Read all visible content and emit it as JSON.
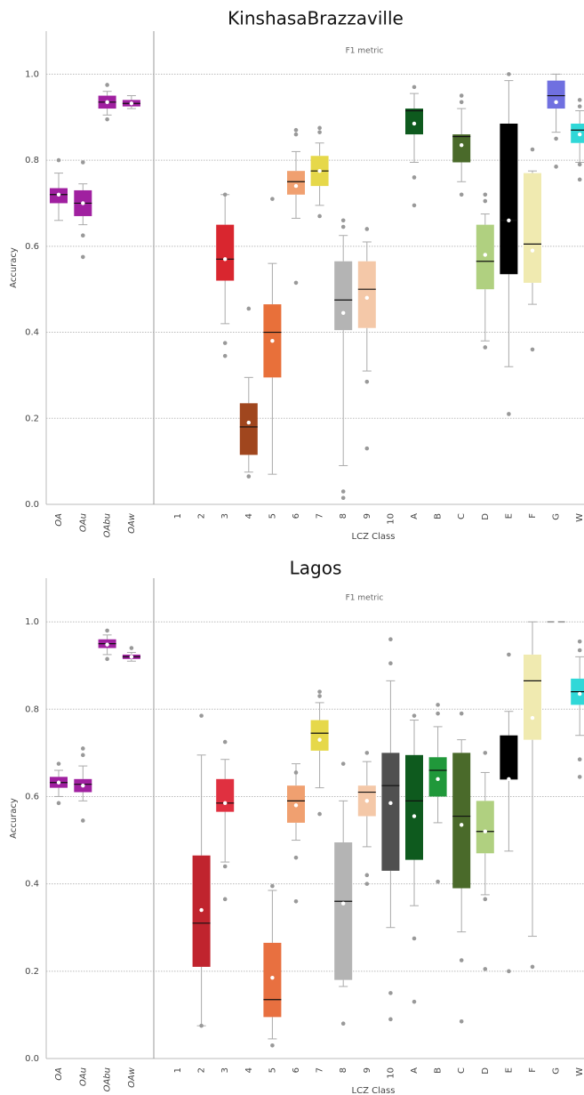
{
  "chart_data": [
    {
      "type": "box",
      "title": "KinshasaBrazzaville",
      "subtitle": "F1 metric",
      "xlabel": "LCZ Class",
      "ylabel": "Accuracy",
      "ylim": [
        0,
        1.1
      ],
      "yticks": [
        {
          "value": 0,
          "label": "0.0"
        },
        0.2,
        0.4,
        0.6,
        0.8,
        {
          "value": 1,
          "label": "1.0"
        }
      ],
      "grid": true,
      "categories": [
        "OA",
        "OAu",
        "OAbu",
        "OAw",
        "1",
        "2",
        "3",
        "4",
        "5",
        "6",
        "7",
        "8",
        "9",
        "10",
        "A",
        "B",
        "C",
        "D",
        "E",
        "F",
        "G",
        "W"
      ],
      "boxes": [
        {
          "color": "#a020a0",
          "low": 0.66,
          "q1": 0.7,
          "median": 0.72,
          "q3": 0.735,
          "high": 0.77,
          "mean": 0.72,
          "outliers": [
            0.8
          ]
        },
        {
          "color": "#a020a0",
          "low": 0.65,
          "q1": 0.67,
          "median": 0.7,
          "q3": 0.73,
          "high": 0.745,
          "mean": 0.7,
          "outliers": [
            0.795,
            0.625,
            0.575
          ]
        },
        {
          "color": "#a020a0",
          "low": 0.905,
          "q1": 0.92,
          "median": 0.935,
          "q3": 0.95,
          "high": 0.96,
          "mean": 0.935,
          "outliers": [
            0.975,
            0.895
          ]
        },
        {
          "color": "#a020a0",
          "low": 0.92,
          "q1": 0.925,
          "median": 0.932,
          "q3": 0.94,
          "high": 0.95,
          "mean": 0.932,
          "outliers": []
        },
        null,
        null,
        {
          "color": "#d9262f",
          "low": 0.42,
          "q1": 0.52,
          "median": 0.57,
          "q3": 0.65,
          "high": 0.72,
          "mean": 0.57,
          "outliers": [
            0.375,
            0.345,
            0.72
          ]
        },
        {
          "color": "#a0461e",
          "low": 0.075,
          "q1": 0.115,
          "median": 0.18,
          "q3": 0.235,
          "high": 0.295,
          "mean": 0.19,
          "outliers": [
            0.455,
            0.065
          ]
        },
        {
          "color": "#e8703a",
          "low": 0.07,
          "q1": 0.295,
          "median": 0.4,
          "q3": 0.465,
          "high": 0.56,
          "mean": 0.38,
          "outliers": [
            0.71
          ]
        },
        {
          "color": "#f0a070",
          "low": 0.665,
          "q1": 0.72,
          "median": 0.75,
          "q3": 0.775,
          "high": 0.82,
          "mean": 0.74,
          "outliers": [
            0.87,
            0.86,
            0.515
          ]
        },
        {
          "color": "#e6d84a",
          "low": 0.695,
          "q1": 0.74,
          "median": 0.775,
          "q3": 0.81,
          "high": 0.84,
          "mean": 0.775,
          "outliers": [
            0.875,
            0.865,
            0.67
          ]
        },
        {
          "color": "#b4b4b4",
          "low": 0.09,
          "q1": 0.405,
          "median": 0.475,
          "q3": 0.565,
          "high": 0.625,
          "mean": 0.445,
          "outliers": [
            0.66,
            0.645,
            0.03,
            0.015
          ]
        },
        {
          "color": "#f4c8a8",
          "low": 0.31,
          "q1": 0.41,
          "median": 0.5,
          "q3": 0.565,
          "high": 0.61,
          "mean": 0.48,
          "outliers": [
            0.64,
            0.285,
            0.13
          ]
        },
        null,
        {
          "color": "#0e5a1e",
          "low": 0.795,
          "q1": 0.86,
          "median": 0.915,
          "q3": 0.92,
          "high": 0.955,
          "mean": 0.885,
          "outliers": [
            0.97,
            0.76,
            0.695
          ]
        },
        null,
        {
          "color": "#4a6a2a",
          "low": 0.75,
          "q1": 0.795,
          "median": 0.855,
          "q3": 0.86,
          "high": 0.92,
          "mean": 0.835,
          "outliers": [
            0.95,
            0.935,
            0.72
          ]
        },
        {
          "color": "#b0d080",
          "low": 0.38,
          "q1": 0.5,
          "median": 0.565,
          "q3": 0.65,
          "high": 0.675,
          "mean": 0.58,
          "outliers": [
            0.72,
            0.705,
            0.365
          ]
        },
        {
          "color": "#000000",
          "low": 0.32,
          "q1": 0.535,
          "median": 0.66,
          "q3": 0.885,
          "high": 0.985,
          "mean": 0.66,
          "outliers": [
            1.0,
            0.21
          ]
        },
        {
          "color": "#f0eab0",
          "low": 0.465,
          "q1": 0.515,
          "median": 0.605,
          "q3": 0.77,
          "high": 0.775,
          "mean": 0.59,
          "outliers": [
            0.825,
            0.36
          ]
        },
        {
          "color": "#7070e0",
          "low": 0.865,
          "q1": 0.92,
          "median": 0.95,
          "q3": 0.985,
          "high": 1.0,
          "mean": 0.935,
          "outliers": [
            0.85,
            0.785
          ]
        },
        {
          "color": "#30d8d8",
          "low": 0.795,
          "q1": 0.84,
          "median": 0.87,
          "q3": 0.885,
          "high": 0.915,
          "mean": 0.86,
          "outliers": [
            0.94,
            0.925,
            0.79,
            0.755
          ]
        }
      ]
    },
    {
      "type": "box",
      "title": "Lagos",
      "subtitle": "F1 metric",
      "xlabel": "LCZ Class",
      "ylabel": "Accuracy",
      "ylim": [
        0,
        1.1
      ],
      "yticks": [
        {
          "value": 0,
          "label": "0.0"
        },
        0.2,
        0.4,
        0.6,
        0.8,
        {
          "value": 1,
          "label": "1.0"
        }
      ],
      "grid": true,
      "categories": [
        "OA",
        "OAu",
        "OAbu",
        "OAw",
        "1",
        "2",
        "3",
        "4",
        "5",
        "6",
        "7",
        "8",
        "9",
        "10",
        "A",
        "B",
        "C",
        "D",
        "E",
        "F",
        "G",
        "W"
      ],
      "boxes": [
        {
          "color": "#a020a0",
          "low": 0.6,
          "q1": 0.62,
          "median": 0.632,
          "q3": 0.645,
          "high": 0.66,
          "mean": 0.632,
          "outliers": [
            0.675,
            0.585
          ]
        },
        {
          "color": "#a020a0",
          "low": 0.59,
          "q1": 0.61,
          "median": 0.628,
          "q3": 0.64,
          "high": 0.67,
          "mean": 0.625,
          "outliers": [
            0.71,
            0.695,
            0.545
          ]
        },
        {
          "color": "#a020a0",
          "low": 0.925,
          "q1": 0.94,
          "median": 0.95,
          "q3": 0.96,
          "high": 0.97,
          "mean": 0.948,
          "outliers": [
            0.98,
            0.915
          ]
        },
        {
          "color": "#a020a0",
          "low": 0.91,
          "q1": 0.915,
          "median": 0.92,
          "q3": 0.925,
          "high": 0.93,
          "mean": 0.92,
          "outliers": [
            0.94
          ]
        },
        null,
        {
          "color": "#c0242e",
          "low": 0.075,
          "q1": 0.21,
          "median": 0.31,
          "q3": 0.465,
          "high": 0.695,
          "mean": 0.34,
          "outliers": [
            0.785,
            0.075
          ]
        },
        {
          "color": "#e03040",
          "low": 0.45,
          "q1": 0.565,
          "median": 0.585,
          "q3": 0.64,
          "high": 0.685,
          "mean": 0.585,
          "outliers": [
            0.725,
            0.44,
            0.365
          ]
        },
        null,
        {
          "color": "#e87040",
          "low": 0.045,
          "q1": 0.095,
          "median": 0.135,
          "q3": 0.265,
          "high": 0.385,
          "mean": 0.185,
          "outliers": [
            0.395,
            0.03
          ]
        },
        {
          "color": "#f0a070",
          "low": 0.5,
          "q1": 0.54,
          "median": 0.59,
          "q3": 0.625,
          "high": 0.675,
          "mean": 0.58,
          "outliers": [
            0.655,
            0.46,
            0.36
          ]
        },
        {
          "color": "#e6d84a",
          "low": 0.62,
          "q1": 0.705,
          "median": 0.745,
          "q3": 0.775,
          "high": 0.815,
          "mean": 0.73,
          "outliers": [
            0.84,
            0.83,
            0.56
          ]
        },
        {
          "color": "#b4b4b4",
          "low": 0.165,
          "q1": 0.18,
          "median": 0.36,
          "q3": 0.495,
          "high": 0.59,
          "mean": 0.355,
          "outliers": [
            0.675,
            0.08
          ]
        },
        {
          "color": "#f4c8a8",
          "low": 0.485,
          "q1": 0.555,
          "median": 0.61,
          "q3": 0.625,
          "high": 0.68,
          "mean": 0.59,
          "outliers": [
            0.7,
            0.42,
            0.4
          ]
        },
        {
          "color": "#505050",
          "low": 0.3,
          "q1": 0.43,
          "median": 0.625,
          "q3": 0.7,
          "high": 0.865,
          "mean": 0.585,
          "outliers": [
            0.96,
            0.905,
            0.15,
            0.09
          ]
        },
        {
          "color": "#0e5a1e",
          "low": 0.35,
          "q1": 0.455,
          "median": 0.59,
          "q3": 0.695,
          "high": 0.775,
          "mean": 0.555,
          "outliers": [
            0.785,
            0.275,
            0.13
          ]
        },
        {
          "color": "#20983a",
          "low": 0.54,
          "q1": 0.6,
          "median": 0.66,
          "q3": 0.69,
          "high": 0.76,
          "mean": 0.64,
          "outliers": [
            0.81,
            0.79,
            0.405
          ]
        },
        {
          "color": "#4a6a2a",
          "low": 0.29,
          "q1": 0.39,
          "median": 0.555,
          "q3": 0.7,
          "high": 0.73,
          "mean": 0.535,
          "outliers": [
            0.79,
            0.225,
            0.085
          ]
        },
        {
          "color": "#b0d080",
          "low": 0.375,
          "q1": 0.47,
          "median": 0.52,
          "q3": 0.59,
          "high": 0.655,
          "mean": 0.52,
          "outliers": [
            0.7,
            0.365,
            0.205
          ]
        },
        {
          "color": "#000000",
          "low": 0.475,
          "q1": 0.64,
          "median": 0.64,
          "q3": 0.74,
          "high": 0.795,
          "mean": 0.64,
          "outliers": [
            0.925,
            0.2
          ]
        },
        {
          "color": "#f0eab0",
          "low": 0.28,
          "q1": 0.73,
          "median": 0.865,
          "q3": 0.925,
          "high": 1.0,
          "mean": 0.78,
          "outliers": [
            0.21
          ]
        },
        {
          "color": "#aaaaaa",
          "low": 1.0,
          "q1": 1.0,
          "median": 1.0,
          "q3": 1.0,
          "high": 1.0,
          "mean": 1.0,
          "outliers": []
        },
        {
          "color": "#30d8d8",
          "low": 0.74,
          "q1": 0.81,
          "median": 0.84,
          "q3": 0.87,
          "high": 0.92,
          "mean": 0.835,
          "outliers": [
            0.955,
            0.935,
            0.685,
            0.645
          ]
        }
      ]
    }
  ]
}
